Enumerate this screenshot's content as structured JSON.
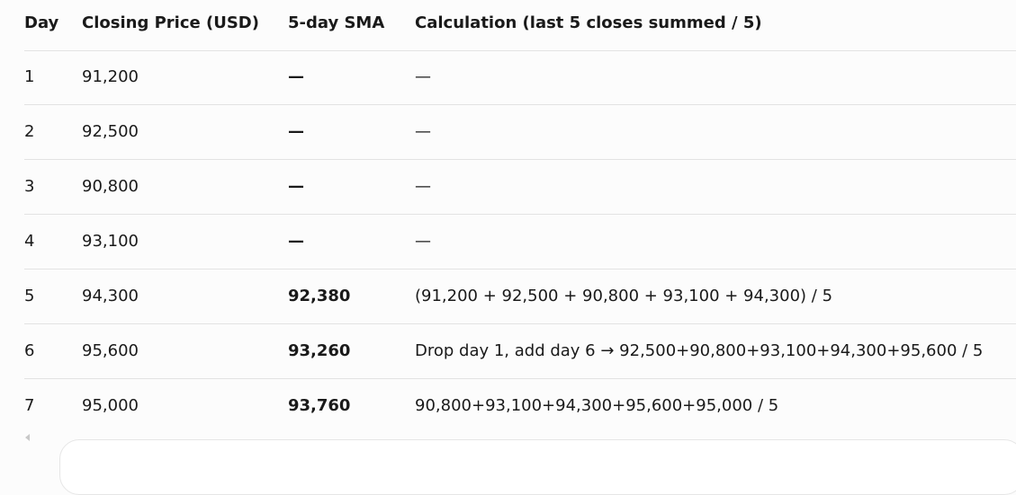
{
  "table": {
    "header": [
      "Day",
      "Closing Price (USD)",
      "5-day SMA",
      "Calculation (last 5 closes summed / 5)"
    ],
    "rows": [
      [
        "1",
        "91,200",
        "—",
        "—"
      ],
      [
        "2",
        "92,500",
        "—",
        "—"
      ],
      [
        "3",
        "90,800",
        "—",
        "—"
      ],
      [
        "4",
        "93,100",
        "—",
        "—"
      ],
      [
        "5",
        "94,300",
        "92,380",
        "(91,200 + 92,500 + 90,800 + 93,100 + 94,300) / 5"
      ],
      [
        "6",
        "95,600",
        "93,260",
        "Drop day 1, add day 6 → 92,500+90,800+93,100+94,300+95,600 / 5"
      ],
      [
        "7",
        "95,000",
        "93,760",
        "90,800+93,100+94,300+95,600+95,000 / 5"
      ]
    ]
  }
}
